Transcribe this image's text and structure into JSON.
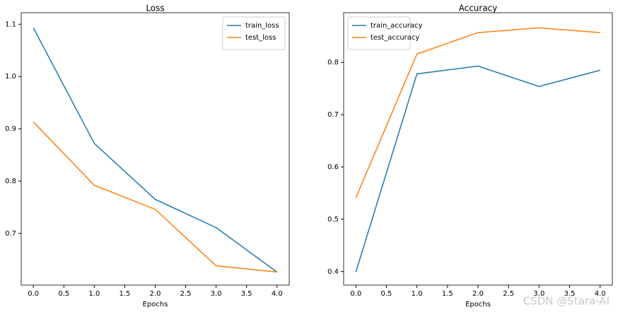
{
  "chart_data": [
    {
      "type": "line",
      "title": "Loss",
      "xlabel": "Epochs",
      "x": [
        0,
        1,
        2,
        3,
        4
      ],
      "series": [
        {
          "name": "train_loss",
          "color": "#1f77b4",
          "values": [
            1.093,
            0.872,
            0.765,
            0.711,
            0.626
          ]
        },
        {
          "name": "test_loss",
          "color": "#ff7f0e",
          "values": [
            0.913,
            0.792,
            0.746,
            0.638,
            0.626
          ]
        }
      ],
      "xlim": [
        -0.2,
        4.2
      ],
      "xticks": [
        {
          "value": 0,
          "label": "0.0"
        },
        {
          "value": 0.5,
          "label": "0.5"
        },
        {
          "value": 1,
          "label": "1.0"
        },
        {
          "value": 1.5,
          "label": "1.5"
        },
        {
          "value": 2,
          "label": "2.0"
        },
        {
          "value": 2.5,
          "label": "2.5"
        },
        {
          "value": 3,
          "label": "3.0"
        },
        {
          "value": 3.5,
          "label": "3.5"
        },
        {
          "value": 4,
          "label": "4.0"
        }
      ],
      "ylim": [
        0.601,
        1.122
      ],
      "yticks": [
        0.7,
        0.8,
        0.9,
        {
          "value": 1,
          "label": "1.0"
        },
        1.1
      ],
      "legend": "upper-right"
    },
    {
      "type": "line",
      "title": "Accuracy",
      "xlabel": "Epochs",
      "x": [
        0,
        1,
        2,
        3,
        4
      ],
      "series": [
        {
          "name": "train_accuracy",
          "color": "#1f77b4",
          "values": [
            0.399,
            0.778,
            0.793,
            0.754,
            0.785
          ]
        },
        {
          "name": "test_accuracy",
          "color": "#ff7f0e",
          "values": [
            0.541,
            0.816,
            0.857,
            0.866,
            0.857
          ]
        }
      ],
      "xlim": [
        -0.2,
        4.2
      ],
      "xticks": [
        {
          "value": 0,
          "label": "0.0"
        },
        {
          "value": 0.5,
          "label": "0.5"
        },
        {
          "value": 1,
          "label": "1.0"
        },
        {
          "value": 1.5,
          "label": "1.5"
        },
        {
          "value": 2,
          "label": "2.0"
        },
        {
          "value": 2.5,
          "label": "2.5"
        },
        {
          "value": 3,
          "label": "3.0"
        },
        {
          "value": 3.5,
          "label": "3.5"
        },
        {
          "value": 4,
          "label": "4.0"
        }
      ],
      "ylim": [
        0.374,
        0.895
      ],
      "yticks": [
        0.4,
        0.5,
        0.6,
        0.7,
        0.8
      ],
      "legend": "upper-left"
    }
  ],
  "watermark": "CSDN @Stara-AI"
}
